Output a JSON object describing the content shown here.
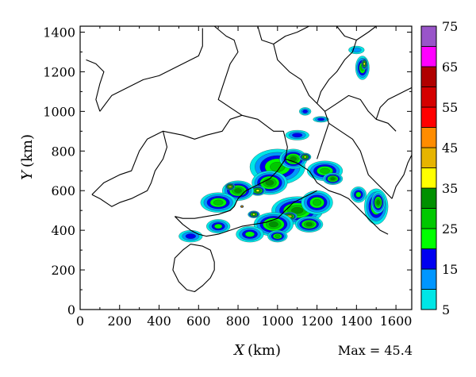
{
  "chart_data": {
    "type": "heatmap",
    "title": "",
    "xlabel_var": "X",
    "xlabel_unit": "(km)",
    "ylabel_var": "Y",
    "ylabel_unit": "(km)",
    "xlim": [
      0,
      1680
    ],
    "ylim": [
      0,
      1430
    ],
    "x_ticks": [
      0,
      200,
      400,
      600,
      800,
      1000,
      1200,
      1400,
      1600
    ],
    "y_ticks": [
      0,
      200,
      400,
      600,
      800,
      1000,
      1200,
      1400
    ],
    "annotation": "Max = 45.4",
    "colorbar": {
      "levels": [
        5,
        10,
        15,
        20,
        25,
        30,
        35,
        40,
        45,
        50,
        55,
        60,
        65,
        70,
        75
      ],
      "tick_labels": [
        5,
        15,
        25,
        35,
        45,
        55,
        65,
        75
      ],
      "colors": [
        "#00e6e6",
        "#0096ff",
        "#0000f0",
        "#00ff00",
        "#00c800",
        "#009000",
        "#ffff00",
        "#e6b400",
        "#ff8c00",
        "#ff0000",
        "#d40000",
        "#b00000",
        "#ff00ff",
        "#9955c9"
      ]
    },
    "cells": [
      {
        "x": 1000,
        "y": 720,
        "level": 25,
        "rx": 140,
        "ry": 90
      },
      {
        "x": 1080,
        "y": 760,
        "level": 30,
        "rx": 70,
        "ry": 50
      },
      {
        "x": 1140,
        "y": 770,
        "level": 35,
        "rx": 30,
        "ry": 20
      },
      {
        "x": 960,
        "y": 640,
        "level": 30,
        "rx": 90,
        "ry": 60
      },
      {
        "x": 900,
        "y": 600,
        "level": 35,
        "rx": 40,
        "ry": 25
      },
      {
        "x": 800,
        "y": 600,
        "level": 30,
        "rx": 80,
        "ry": 50
      },
      {
        "x": 760,
        "y": 620,
        "level": 40,
        "rx": 25,
        "ry": 18
      },
      {
        "x": 700,
        "y": 540,
        "level": 25,
        "rx": 90,
        "ry": 50
      },
      {
        "x": 1100,
        "y": 500,
        "level": 30,
        "rx": 130,
        "ry": 70
      },
      {
        "x": 1060,
        "y": 470,
        "level": 40,
        "rx": 40,
        "ry": 22
      },
      {
        "x": 980,
        "y": 430,
        "level": 30,
        "rx": 100,
        "ry": 60
      },
      {
        "x": 1200,
        "y": 540,
        "level": 25,
        "rx": 80,
        "ry": 60
      },
      {
        "x": 1240,
        "y": 700,
        "level": 25,
        "rx": 90,
        "ry": 50
      },
      {
        "x": 1280,
        "y": 660,
        "level": 30,
        "rx": 50,
        "ry": 30
      },
      {
        "x": 1500,
        "y": 520,
        "level": 25,
        "rx": 60,
        "ry": 90
      },
      {
        "x": 1510,
        "y": 540,
        "level": 30,
        "rx": 35,
        "ry": 55
      },
      {
        "x": 1410,
        "y": 580,
        "level": 20,
        "rx": 40,
        "ry": 40
      },
      {
        "x": 1430,
        "y": 1220,
        "level": 25,
        "rx": 35,
        "ry": 60
      },
      {
        "x": 1440,
        "y": 1240,
        "level": 35,
        "rx": 15,
        "ry": 30
      },
      {
        "x": 1140,
        "y": 1000,
        "level": 15,
        "rx": 30,
        "ry": 20
      },
      {
        "x": 1220,
        "y": 960,
        "level": 15,
        "rx": 40,
        "ry": 15
      },
      {
        "x": 560,
        "y": 370,
        "level": 15,
        "rx": 60,
        "ry": 30
      },
      {
        "x": 700,
        "y": 420,
        "level": 20,
        "rx": 60,
        "ry": 35
      },
      {
        "x": 860,
        "y": 380,
        "level": 20,
        "rx": 70,
        "ry": 40
      },
      {
        "x": 1000,
        "y": 370,
        "level": 25,
        "rx": 50,
        "ry": 30
      },
      {
        "x": 1160,
        "y": 430,
        "level": 30,
        "rx": 70,
        "ry": 40
      },
      {
        "x": 1100,
        "y": 880,
        "level": 15,
        "rx": 60,
        "ry": 25
      },
      {
        "x": 1400,
        "y": 1310,
        "level": 10,
        "rx": 40,
        "ry": 20
      },
      {
        "x": 880,
        "y": 480,
        "level": 35,
        "rx": 30,
        "ry": 18
      },
      {
        "x": 820,
        "y": 520,
        "level": 45,
        "rx": 8,
        "ry": 6
      }
    ],
    "boundaries": [
      [
        [
          60,
          580
        ],
        [
          120,
          640
        ],
        [
          200,
          680
        ],
        [
          260,
          700
        ],
        [
          300,
          800
        ],
        [
          340,
          860
        ],
        [
          420,
          900
        ],
        [
          520,
          880
        ],
        [
          580,
          860
        ],
        [
          640,
          880
        ],
        [
          720,
          900
        ],
        [
          760,
          960
        ],
        [
          820,
          980
        ],
        [
          900,
          960
        ],
        [
          980,
          900
        ],
        [
          1030,
          900
        ],
        [
          1050,
          820
        ],
        [
          1040,
          760
        ]
      ],
      [
        [
          100,
          1000
        ],
        [
          160,
          1080
        ],
        [
          240,
          1120
        ],
        [
          320,
          1160
        ],
        [
          400,
          1180
        ],
        [
          480,
          1220
        ],
        [
          560,
          1260
        ],
        [
          600,
          1280
        ],
        [
          620,
          1330
        ],
        [
          620,
          1420
        ]
      ],
      [
        [
          30,
          1260
        ],
        [
          80,
          1240
        ],
        [
          120,
          1200
        ],
        [
          100,
          1140
        ],
        [
          80,
          1060
        ],
        [
          100,
          1000
        ]
      ],
      [
        [
          680,
          1430
        ],
        [
          740,
          1380
        ],
        [
          780,
          1360
        ],
        [
          800,
          1300
        ],
        [
          760,
          1240
        ],
        [
          720,
          1120
        ],
        [
          700,
          1060
        ],
        [
          760,
          1020
        ],
        [
          820,
          980
        ]
      ],
      [
        [
          900,
          1430
        ],
        [
          920,
          1360
        ],
        [
          980,
          1340
        ],
        [
          1040,
          1380
        ],
        [
          1100,
          1400
        ],
        [
          1160,
          1430
        ]
      ],
      [
        [
          1300,
          1430
        ],
        [
          1340,
          1380
        ],
        [
          1400,
          1360
        ],
        [
          1460,
          1400
        ],
        [
          1500,
          1430
        ]
      ],
      [
        [
          980,
          1340
        ],
        [
          1000,
          1260
        ],
        [
          1060,
          1200
        ],
        [
          1120,
          1160
        ],
        [
          1160,
          1080
        ],
        [
          1200,
          1040
        ],
        [
          1240,
          1000
        ],
        [
          1260,
          940
        ],
        [
          1240,
          880
        ],
        [
          1220,
          820
        ],
        [
          1200,
          760
        ]
      ],
      [
        [
          1240,
          1000
        ],
        [
          1300,
          1040
        ],
        [
          1360,
          1080
        ],
        [
          1420,
          1060
        ],
        [
          1460,
          1000
        ],
        [
          1500,
          960
        ],
        [
          1560,
          940
        ],
        [
          1600,
          900
        ]
      ],
      [
        [
          1260,
          940
        ],
        [
          1320,
          900
        ],
        [
          1380,
          860
        ],
        [
          1420,
          800
        ],
        [
          1440,
          740
        ],
        [
          1460,
          680
        ],
        [
          1500,
          640
        ],
        [
          1540,
          600
        ],
        [
          1580,
          560
        ]
      ],
      [
        [
          1040,
          760
        ],
        [
          1100,
          740
        ],
        [
          1160,
          700
        ],
        [
          1200,
          640
        ],
        [
          1260,
          600
        ],
        [
          1320,
          580
        ],
        [
          1360,
          560
        ],
        [
          1400,
          520
        ],
        [
          1440,
          480
        ],
        [
          1480,
          440
        ],
        [
          1520,
          400
        ],
        [
          1560,
          380
        ]
      ],
      [
        [
          1580,
          560
        ],
        [
          1600,
          620
        ],
        [
          1640,
          680
        ],
        [
          1660,
          740
        ],
        [
          1680,
          780
        ]
      ],
      [
        [
          1040,
          760
        ],
        [
          1000,
          700
        ],
        [
          960,
          660
        ],
        [
          920,
          640
        ],
        [
          880,
          620
        ],
        [
          840,
          600
        ],
        [
          800,
          560
        ],
        [
          780,
          520
        ],
        [
          760,
          500
        ],
        [
          700,
          480
        ],
        [
          640,
          470
        ],
        [
          580,
          460
        ],
        [
          520,
          460
        ],
        [
          480,
          470
        ]
      ],
      [
        [
          420,
          900
        ],
        [
          440,
          820
        ],
        [
          420,
          760
        ],
        [
          380,
          700
        ],
        [
          360,
          640
        ],
        [
          340,
          600
        ],
        [
          300,
          580
        ],
        [
          260,
          560
        ],
        [
          200,
          540
        ],
        [
          160,
          520
        ],
        [
          100,
          560
        ],
        [
          60,
          580
        ]
      ],
      [
        [
          480,
          470
        ],
        [
          520,
          430
        ],
        [
          560,
          400
        ],
        [
          600,
          380
        ],
        [
          640,
          370
        ],
        [
          700,
          380
        ],
        [
          760,
          400
        ],
        [
          820,
          420
        ],
        [
          880,
          430
        ],
        [
          940,
          440
        ],
        [
          1000,
          460
        ],
        [
          1040,
          500
        ],
        [
          1080,
          540
        ],
        [
          1120,
          560
        ],
        [
          1160,
          580
        ],
        [
          1200,
          600
        ]
      ],
      [
        [
          560,
          330
        ],
        [
          620,
          320
        ],
        [
          660,
          300
        ],
        [
          680,
          240
        ],
        [
          680,
          200
        ],
        [
          660,
          160
        ],
        [
          620,
          120
        ],
        [
          580,
          90
        ],
        [
          540,
          100
        ],
        [
          500,
          140
        ],
        [
          470,
          200
        ],
        [
          480,
          260
        ],
        [
          520,
          300
        ],
        [
          560,
          330
        ]
      ],
      [
        [
          1200,
          1040
        ],
        [
          1220,
          1100
        ],
        [
          1260,
          1160
        ],
        [
          1300,
          1200
        ],
        [
          1340,
          1260
        ],
        [
          1380,
          1300
        ],
        [
          1400,
          1360
        ]
      ],
      [
        [
          1500,
          960
        ],
        [
          1520,
          1020
        ],
        [
          1560,
          1060
        ],
        [
          1600,
          1080
        ],
        [
          1640,
          1100
        ],
        [
          1680,
          1120
        ]
      ]
    ]
  }
}
